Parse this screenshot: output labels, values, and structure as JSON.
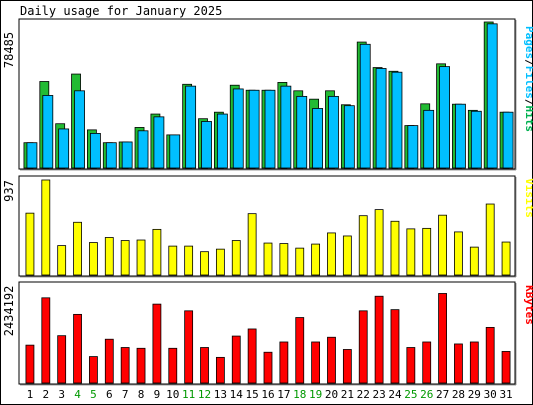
{
  "title": "Daily usage for January 2025",
  "panels": {
    "hits": {
      "ymax_label": "78485",
      "legend": [
        {
          "text": "Pages",
          "color": "#00bfff"
        },
        {
          "text": "/",
          "color": "#000000"
        },
        {
          "text": "Files",
          "color": "#00bfff"
        },
        {
          "text": "/",
          "color": "#000000"
        },
        {
          "text": "Hits",
          "color": "#00b050"
        }
      ]
    },
    "visits": {
      "ymax_label": "937",
      "legend": "Visits",
      "color": "#ffff00"
    },
    "kbytes": {
      "ymax_label": "2434192",
      "legend": "KBytes",
      "color": "#ff0000"
    }
  },
  "colors": {
    "hits": "#22bb33",
    "files": "#00bfff",
    "pages": "#0055aa",
    "weekend_label": "#009900",
    "weekday_label": "#000000"
  },
  "chart_data": [
    {
      "type": "bar",
      "title": "Daily usage for January 2025",
      "x": [
        "1",
        "2",
        "3",
        "4",
        "5",
        "6",
        "7",
        "8",
        "9",
        "10",
        "11",
        "12",
        "13",
        "14",
        "15",
        "16",
        "17",
        "18",
        "19",
        "20",
        "21",
        "22",
        "23",
        "24",
        "25",
        "26",
        "27",
        "28",
        "29",
        "30",
        "31"
      ],
      "weekend_days": [
        "4",
        "5",
        "11",
        "12",
        "18",
        "19",
        "25",
        "26"
      ],
      "ylim": [
        0,
        78485
      ],
      "series": [
        {
          "name": "Hits",
          "values": [
            13600,
            46500,
            23800,
            50500,
            20500,
            13600,
            14000,
            21800,
            29000,
            17800,
            45000,
            26500,
            30000,
            44500,
            41800,
            41800,
            46000,
            41500,
            37000,
            41500,
            34000,
            67700,
            54000,
            52000,
            22800,
            34500,
            56000,
            34300,
            31000,
            78485,
            30000
          ]
        },
        {
          "name": "Files",
          "values": [
            13600,
            39000,
            21000,
            41500,
            18600,
            13600,
            14000,
            20000,
            27500,
            17800,
            44000,
            25000,
            29000,
            42500,
            41800,
            41800,
            44000,
            38500,
            32000,
            38500,
            33500,
            66500,
            53500,
            51500,
            22800,
            31000,
            54500,
            34300,
            30500,
            77500,
            30000
          ]
        },
        {
          "name": "Pages",
          "values": [
            12000,
            24000,
            9000,
            25000,
            6000,
            5000,
            6000,
            10000,
            12000,
            8000,
            25000,
            10000,
            12000,
            25000,
            20000,
            20000,
            24000,
            20000,
            15000,
            20000,
            20000,
            40000,
            28000,
            30000,
            8000,
            15000,
            30000,
            17000,
            15000,
            50000,
            13000
          ]
        }
      ]
    },
    {
      "type": "bar",
      "x": [
        "1",
        "2",
        "3",
        "4",
        "5",
        "6",
        "7",
        "8",
        "9",
        "10",
        "11",
        "12",
        "13",
        "14",
        "15",
        "16",
        "17",
        "18",
        "19",
        "20",
        "21",
        "22",
        "23",
        "24",
        "25",
        "26",
        "27",
        "28",
        "29",
        "30",
        "31"
      ],
      "ylim": [
        0,
        937
      ],
      "series": [
        {
          "name": "Visits",
          "values": [
            610,
            937,
            290,
            520,
            320,
            370,
            340,
            345,
            450,
            285,
            285,
            230,
            255,
            340,
            605,
            315,
            310,
            265,
            305,
            415,
            385,
            585,
            645,
            530,
            455,
            460,
            590,
            425,
            275,
            700,
            325
          ]
        }
      ]
    },
    {
      "type": "bar",
      "x": [
        "1",
        "2",
        "3",
        "4",
        "5",
        "6",
        "7",
        "8",
        "9",
        "10",
        "11",
        "12",
        "13",
        "14",
        "15",
        "16",
        "17",
        "18",
        "19",
        "20",
        "21",
        "22",
        "23",
        "24",
        "25",
        "26",
        "27",
        "28",
        "29",
        "30",
        "31"
      ],
      "ylim": [
        0,
        2434192
      ],
      "series": [
        {
          "name": "KBytes",
          "values": [
            960000,
            2160000,
            1200000,
            1740000,
            670000,
            1110000,
            900000,
            880000,
            2000000,
            880000,
            1830000,
            900000,
            650000,
            1190000,
            1370000,
            780000,
            1040000,
            1660000,
            1040000,
            1160000,
            850000,
            1830000,
            2200000,
            1860000,
            900000,
            1040000,
            2270000,
            990000,
            1040000,
            1410000,
            800000
          ]
        }
      ]
    }
  ]
}
